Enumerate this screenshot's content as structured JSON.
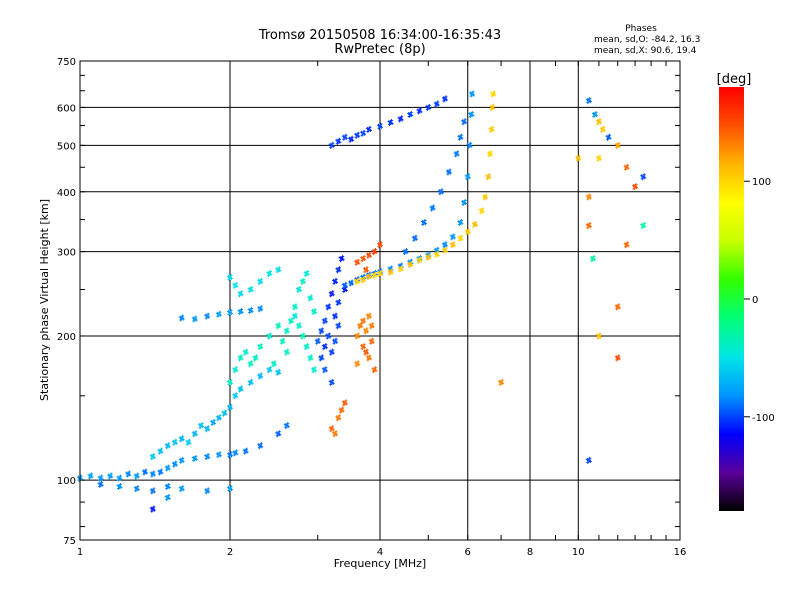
{
  "chart_data": {
    "type": "scatter",
    "title": "Tromsø 20150508 16:34:00-16:35:43",
    "subtitle": "RwPretec (8p)",
    "xlabel": "Frequency [MHz]",
    "ylabel": "Stationary phase Virtual Height [km]",
    "x_scale": "log",
    "y_scale": "log",
    "xlim": [
      1,
      16
    ],
    "ylim": [
      75,
      750
    ],
    "x_ticks": [
      1,
      2,
      4,
      6,
      8,
      10,
      16
    ],
    "y_ticks": [
      75,
      100,
      200,
      300,
      400,
      500,
      600,
      750
    ],
    "grid": true,
    "legend_stats": {
      "heading": "Phases",
      "line1": "mean, sd,O: -84.2, 16.3",
      "line2": "mean, sd,X:  90.6, 19.4"
    },
    "colorbar": {
      "label": "[deg]",
      "range": [
        -180,
        180
      ],
      "ticks": [
        100,
        0,
        -100
      ],
      "colors": [
        "#000000",
        "#5a009a",
        "#0000ff",
        "#0096ff",
        "#00e6e6",
        "#00ff78",
        "#32ff00",
        "#c8ff00",
        "#ffff00",
        "#ffb400",
        "#ff5000",
        "#ff0000"
      ]
    },
    "series": [
      {
        "points": [
          [
            1.0,
            101,
            -80
          ],
          [
            1.05,
            102,
            -75
          ],
          [
            1.1,
            101,
            -82
          ],
          [
            1.15,
            102,
            -78
          ],
          [
            1.2,
            101,
            -80
          ],
          [
            1.25,
            103,
            -85
          ],
          [
            1.3,
            102,
            -80
          ],
          [
            1.35,
            104,
            -90
          ],
          [
            1.4,
            103,
            -85
          ],
          [
            1.45,
            104,
            -88
          ],
          [
            1.5,
            106,
            -80
          ],
          [
            1.55,
            108,
            -85
          ],
          [
            1.6,
            110,
            -82
          ],
          [
            1.7,
            111,
            -80
          ],
          [
            1.8,
            112,
            -85
          ],
          [
            1.9,
            113,
            -82
          ],
          [
            2.0,
            113,
            -88
          ],
          [
            2.05,
            114,
            -85
          ],
          [
            2.15,
            115,
            -90
          ],
          [
            2.3,
            118,
            -92
          ],
          [
            2.5,
            125,
            -95
          ],
          [
            2.6,
            130,
            -90
          ]
        ]
      },
      {
        "points": [
          [
            1.4,
            112,
            -60
          ],
          [
            1.45,
            115,
            -65
          ],
          [
            1.5,
            118,
            -70
          ],
          [
            1.55,
            120,
            -65
          ],
          [
            1.6,
            122,
            -70
          ],
          [
            1.65,
            120,
            -60
          ],
          [
            1.7,
            125,
            -70
          ],
          [
            1.75,
            130,
            -65
          ],
          [
            1.8,
            128,
            -70
          ],
          [
            1.85,
            132,
            -75
          ],
          [
            1.9,
            135,
            -70
          ],
          [
            1.95,
            138,
            -65
          ],
          [
            2.0,
            142,
            -70
          ],
          [
            2.05,
            150,
            -60
          ],
          [
            2.1,
            155,
            -65
          ],
          [
            2.2,
            160,
            -65
          ],
          [
            2.3,
            165,
            -70
          ],
          [
            2.4,
            170,
            -60
          ],
          [
            2.5,
            168,
            -65
          ]
        ]
      },
      {
        "points": [
          [
            2.0,
            160,
            -40
          ],
          [
            2.05,
            170,
            -45
          ],
          [
            2.1,
            180,
            -40
          ],
          [
            2.15,
            185,
            -42
          ],
          [
            2.2,
            175,
            -38
          ],
          [
            2.25,
            180,
            -40
          ],
          [
            2.3,
            190,
            -35
          ],
          [
            2.4,
            200,
            -40
          ],
          [
            2.5,
            210,
            -35
          ],
          [
            2.6,
            205,
            -40
          ],
          [
            2.65,
            215,
            -38
          ],
          [
            2.7,
            220,
            -45
          ],
          [
            2.75,
            210,
            -40
          ],
          [
            2.8,
            200,
            -35
          ],
          [
            2.85,
            190,
            -40
          ],
          [
            2.9,
            180,
            -38
          ],
          [
            2.95,
            170,
            -42
          ],
          [
            2.7,
            230,
            -40
          ],
          [
            2.75,
            250,
            -45
          ],
          [
            2.8,
            260,
            -40
          ],
          [
            2.85,
            270,
            -45
          ],
          [
            2.9,
            240,
            -42
          ],
          [
            2.95,
            225,
            -40
          ],
          [
            2.6,
            185,
            -38
          ],
          [
            2.55,
            195,
            -35
          ],
          [
            2.45,
            175,
            -40
          ]
        ]
      },
      {
        "points": [
          [
            1.6,
            218,
            -85
          ],
          [
            1.7,
            217,
            -80
          ],
          [
            1.8,
            220,
            -85
          ],
          [
            1.9,
            222,
            -80
          ],
          [
            2.0,
            224,
            -78
          ],
          [
            2.1,
            225,
            -80
          ],
          [
            2.2,
            226,
            -82
          ],
          [
            2.3,
            228,
            -85
          ]
        ]
      },
      {
        "points": [
          [
            2.0,
            265,
            -55
          ],
          [
            2.05,
            255,
            -50
          ],
          [
            2.1,
            245,
            -55
          ],
          [
            2.2,
            250,
            -50
          ],
          [
            2.3,
            260,
            -55
          ],
          [
            2.4,
            270,
            -50
          ],
          [
            2.5,
            275,
            -55
          ]
        ]
      },
      {
        "points": [
          [
            3.0,
            195,
            -95
          ],
          [
            3.05,
            205,
            -100
          ],
          [
            3.1,
            190,
            -105
          ],
          [
            3.15,
            200,
            -98
          ],
          [
            3.2,
            185,
            -102
          ],
          [
            3.1,
            215,
            -100
          ],
          [
            3.15,
            230,
            -105
          ],
          [
            3.2,
            245,
            -110
          ],
          [
            3.25,
            260,
            -108
          ],
          [
            3.3,
            275,
            -105
          ],
          [
            3.35,
            290,
            -110
          ],
          [
            3.1,
            170,
            -95
          ],
          [
            3.05,
            180,
            -100
          ],
          [
            3.2,
            160,
            -98
          ],
          [
            3.25,
            220,
            -105
          ],
          [
            3.3,
            210,
            -100
          ],
          [
            3.4,
            250,
            -108
          ],
          [
            3.3,
            235,
            -102
          ],
          [
            3.25,
            195,
            -98
          ]
        ]
      },
      {
        "points": [
          [
            3.4,
            255,
            -95
          ],
          [
            3.5,
            258,
            -92
          ],
          [
            3.6,
            262,
            -95
          ],
          [
            3.7,
            265,
            -90
          ],
          [
            3.8,
            268,
            -92
          ],
          [
            3.9,
            270,
            -90
          ],
          [
            4.0,
            272,
            -88
          ],
          [
            4.2,
            276,
            -85
          ],
          [
            4.4,
            280,
            -88
          ],
          [
            4.6,
            285,
            -85
          ],
          [
            4.8,
            290,
            -82
          ],
          [
            5.0,
            295,
            -80
          ],
          [
            5.2,
            302,
            -82
          ],
          [
            5.4,
            310,
            -85
          ],
          [
            5.6,
            322,
            -82
          ],
          [
            5.8,
            345,
            -80
          ],
          [
            5.9,
            380,
            -82
          ],
          [
            6.0,
            430,
            -80
          ],
          [
            6.05,
            500,
            -85
          ],
          [
            6.1,
            580,
            -82
          ],
          [
            6.12,
            640,
            -80
          ]
        ]
      },
      {
        "points": [
          [
            3.6,
            260,
            100
          ],
          [
            3.7,
            262,
            105
          ],
          [
            3.8,
            266,
            110
          ],
          [
            3.9,
            268,
            100
          ],
          [
            4.0,
            270,
            105
          ],
          [
            4.2,
            272,
            110
          ],
          [
            4.4,
            276,
            100
          ],
          [
            4.6,
            282,
            110
          ],
          [
            4.8,
            288,
            105
          ],
          [
            5.0,
            292,
            110
          ],
          [
            5.2,
            296,
            100
          ],
          [
            5.4,
            302,
            105
          ],
          [
            5.6,
            310,
            110
          ],
          [
            5.8,
            320,
            100
          ],
          [
            6.0,
            330,
            105
          ],
          [
            6.2,
            342,
            110
          ],
          [
            6.4,
            365,
            100
          ],
          [
            6.5,
            390,
            105
          ],
          [
            6.6,
            430,
            110
          ],
          [
            6.65,
            480,
            100
          ],
          [
            6.7,
            540,
            105
          ],
          [
            6.72,
            600,
            110
          ],
          [
            6.75,
            640,
            100
          ]
        ]
      },
      {
        "points": [
          [
            3.2,
            500,
            -100
          ],
          [
            3.3,
            510,
            -105
          ],
          [
            3.4,
            520,
            -100
          ],
          [
            3.5,
            515,
            -108
          ],
          [
            3.6,
            525,
            -102
          ],
          [
            3.7,
            530,
            -100
          ],
          [
            3.8,
            540,
            -105
          ],
          [
            4.0,
            548,
            -100
          ],
          [
            4.2,
            558,
            -102
          ],
          [
            4.4,
            568,
            -108
          ],
          [
            4.6,
            580,
            -100
          ],
          [
            4.8,
            590,
            -105
          ],
          [
            5.0,
            600,
            -102
          ],
          [
            5.2,
            610,
            -100
          ],
          [
            5.4,
            625,
            -105
          ]
        ]
      },
      {
        "points": [
          [
            4.5,
            300,
            -90
          ],
          [
            4.7,
            320,
            -92
          ],
          [
            4.9,
            345,
            -90
          ],
          [
            5.1,
            370,
            -88
          ],
          [
            5.3,
            400,
            -92
          ],
          [
            5.5,
            440,
            -90
          ],
          [
            5.7,
            480,
            -88
          ],
          [
            5.8,
            520,
            -90
          ],
          [
            5.9,
            560,
            -92
          ]
        ]
      },
      {
        "points": [
          [
            3.6,
            200,
            130
          ],
          [
            3.65,
            210,
            135
          ],
          [
            3.7,
            190,
            140
          ],
          [
            3.75,
            205,
            130
          ],
          [
            3.8,
            180,
            135
          ],
          [
            3.85,
            195,
            140
          ],
          [
            3.6,
            175,
            130
          ],
          [
            3.7,
            215,
            135
          ],
          [
            3.8,
            220,
            130
          ],
          [
            3.9,
            170,
            140
          ],
          [
            3.75,
            185,
            145
          ],
          [
            3.85,
            210,
            135
          ]
        ]
      },
      {
        "points": [
          [
            3.6,
            285,
            150
          ],
          [
            3.7,
            290,
            145
          ],
          [
            3.8,
            295,
            150
          ],
          [
            3.9,
            300,
            155
          ],
          [
            4.0,
            310,
            150
          ],
          [
            3.75,
            275,
            145
          ]
        ]
      },
      {
        "points": [
          [
            3.2,
            128,
            140
          ],
          [
            3.3,
            135,
            135
          ],
          [
            3.35,
            140,
            140
          ],
          [
            3.4,
            145,
            145
          ],
          [
            3.25,
            125,
            135
          ]
        ]
      },
      {
        "points": [
          [
            10.5,
            620,
            -90
          ],
          [
            10.8,
            580,
            -80
          ],
          [
            11.0,
            560,
            110
          ],
          [
            11.2,
            540,
            105
          ],
          [
            11.5,
            520,
            -95
          ],
          [
            12.0,
            500,
            120
          ],
          [
            10.5,
            390,
            130
          ],
          [
            11.0,
            470,
            100
          ],
          [
            12.5,
            450,
            140
          ],
          [
            13.0,
            410,
            150
          ],
          [
            13.5,
            430,
            -100
          ],
          [
            10.5,
            340,
            140
          ],
          [
            10.7,
            290,
            -30
          ],
          [
            12.5,
            310,
            140
          ],
          [
            12.0,
            180,
            150
          ],
          [
            12.0,
            230,
            140
          ],
          [
            11.0,
            200,
            110
          ],
          [
            10.5,
            110,
            -100
          ],
          [
            7.0,
            160,
            130
          ],
          [
            10.0,
            470,
            110
          ],
          [
            13.5,
            340,
            -30
          ]
        ]
      },
      {
        "points": [
          [
            1.1,
            98,
            -90
          ],
          [
            1.2,
            97,
            -80
          ],
          [
            1.3,
            96,
            -85
          ],
          [
            1.4,
            95,
            -90
          ],
          [
            1.5,
            97,
            -85
          ],
          [
            1.6,
            96,
            -80
          ],
          [
            1.8,
            95,
            -85
          ],
          [
            2.0,
            96,
            -80
          ],
          [
            1.4,
            87,
            -110
          ],
          [
            1.5,
            92,
            -80
          ]
        ]
      }
    ]
  }
}
